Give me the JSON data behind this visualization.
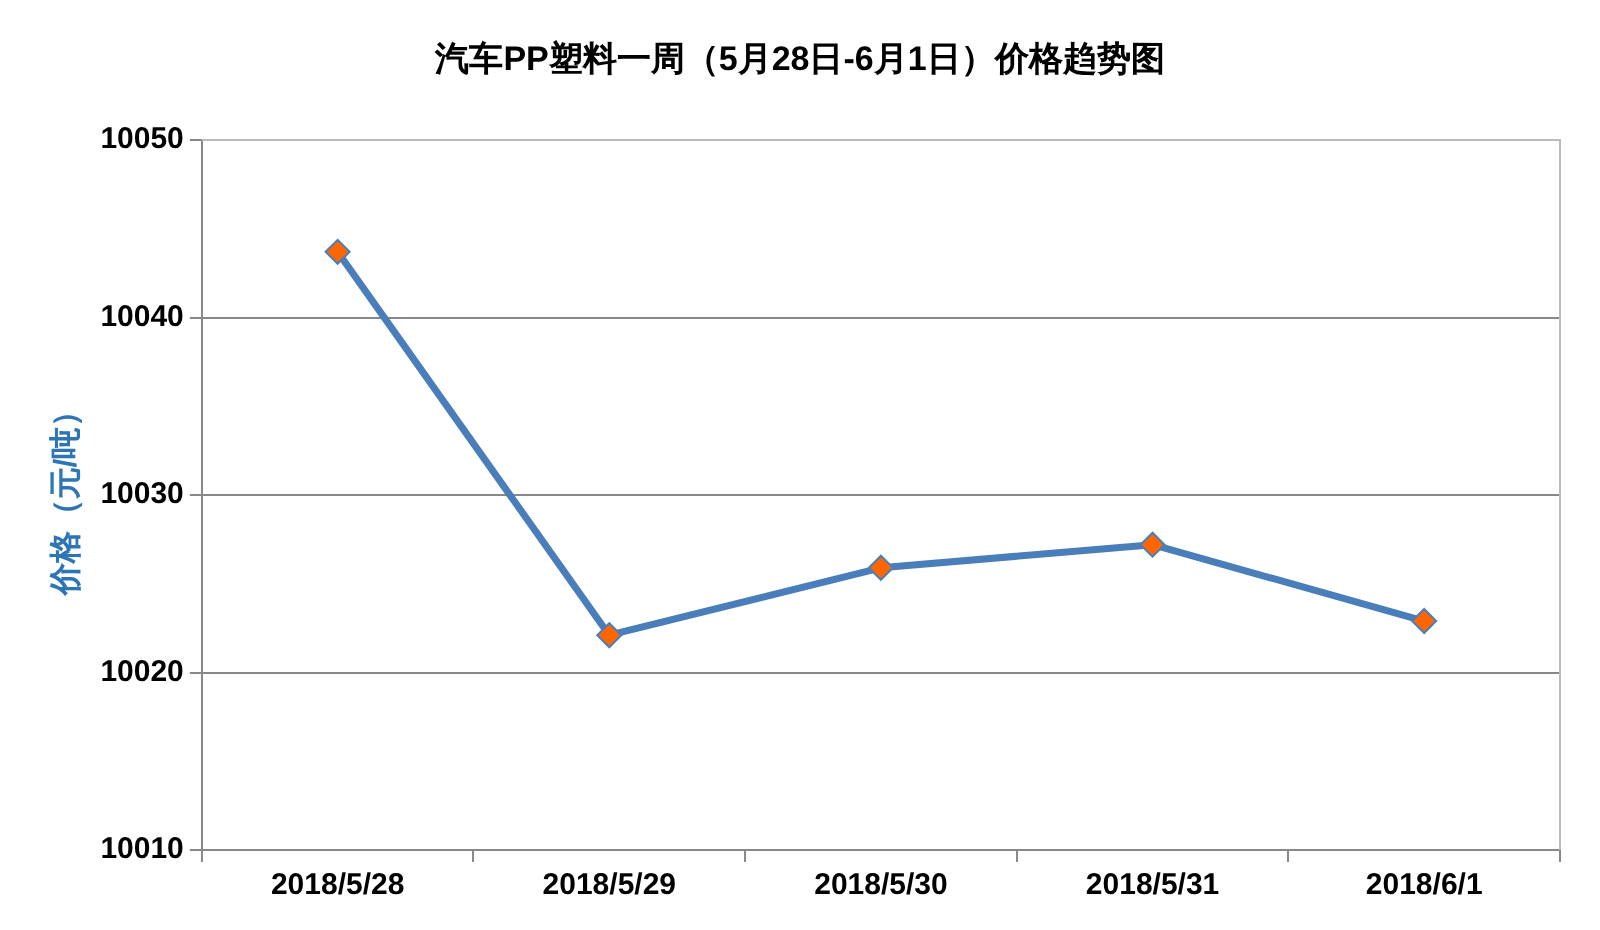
{
  "chart_data": {
    "type": "line",
    "title": "汽车PP塑料一周（5月28日-6月1日）价格趋势图",
    "ylabel": "价格（元/吨）",
    "categories": [
      "2018/5/28",
      "2018/5/29",
      "2018/5/30",
      "2018/5/31",
      "2018/6/1"
    ],
    "series": [
      {
        "color": "#4a7ebb",
        "values": [
          10043.7,
          10022.1,
          10025.9,
          10027.2,
          10022.9
        ]
      }
    ],
    "ylim": [
      10010,
      10050
    ],
    "yticks": [
      10010,
      10020,
      10030,
      10040,
      10050
    ],
    "grid": "y",
    "legend": false,
    "marker": "diamond",
    "line_style": "solid"
  }
}
